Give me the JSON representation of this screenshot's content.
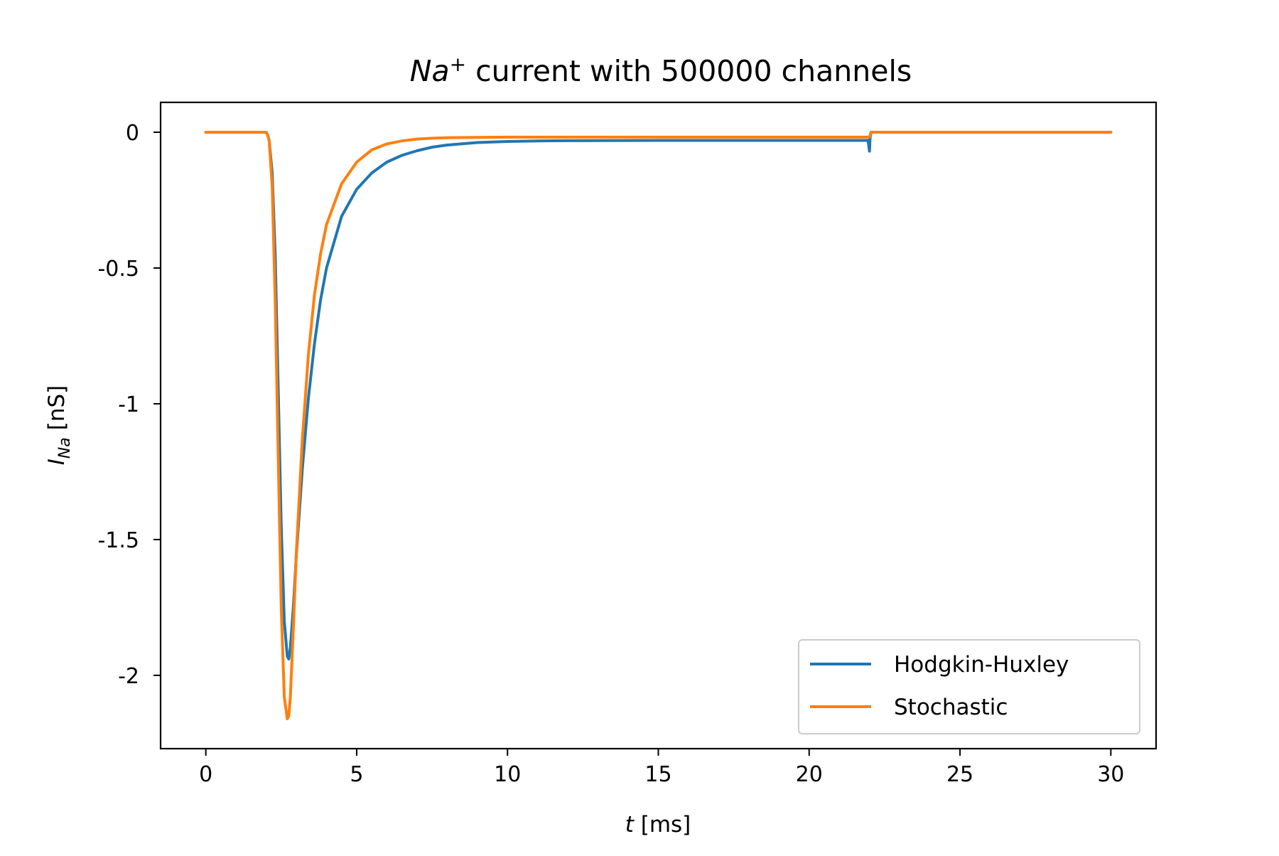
{
  "chart_data": {
    "type": "line",
    "title": {
      "prefix": "Na",
      "superscript": "+",
      "suffix": " current with 500000 channels"
    },
    "xlabel": {
      "italic": "t",
      "rest": " [ms]"
    },
    "ylabel": {
      "italic": "I",
      "subscript": "Na",
      "rest": " [nS]"
    },
    "xlim": [
      -1.5,
      31.5
    ],
    "ylim": [
      -2.27,
      0.11
    ],
    "xticks": [
      0,
      5,
      10,
      15,
      20,
      25,
      30
    ],
    "xtick_labels": [
      "0",
      "5",
      "10",
      "15",
      "20",
      "25",
      "30"
    ],
    "yticks": [
      0,
      -0.5,
      -1,
      -1.5,
      -2
    ],
    "ytick_labels": [
      "0",
      "-0.5",
      "-1",
      "-1.5",
      "-2"
    ],
    "grid": false,
    "legend_position": "lower-right",
    "series": [
      {
        "name": "Hodgkin-Huxley",
        "color": "#1f77b4",
        "x": [
          0,
          1,
          2,
          2.05,
          2.1,
          2.2,
          2.3,
          2.4,
          2.5,
          2.6,
          2.7,
          2.75,
          2.8,
          2.9,
          3.0,
          3.2,
          3.4,
          3.6,
          3.8,
          4.0,
          4.5,
          5.0,
          5.5,
          6.0,
          6.5,
          7.0,
          7.5,
          8.0,
          9.0,
          10.0,
          11.0,
          12.0,
          15.0,
          20.0,
          21.9,
          21.95,
          22.0,
          22.02,
          22.05,
          22.1,
          25.0,
          30.0
        ],
        "y": [
          0,
          0,
          0,
          -0.01,
          -0.03,
          -0.15,
          -0.45,
          -0.95,
          -1.45,
          -1.8,
          -1.93,
          -1.94,
          -1.9,
          -1.75,
          -1.56,
          -1.24,
          -0.98,
          -0.78,
          -0.62,
          -0.5,
          -0.31,
          -0.21,
          -0.15,
          -0.11,
          -0.085,
          -0.068,
          -0.055,
          -0.047,
          -0.038,
          -0.034,
          -0.032,
          -0.031,
          -0.03,
          -0.03,
          -0.03,
          -0.03,
          -0.07,
          -0.02,
          0.0,
          0.0,
          0.0,
          0.0
        ]
      },
      {
        "name": "Stochastic",
        "color": "#ff7f0e",
        "x": [
          0,
          1,
          2,
          2.05,
          2.1,
          2.2,
          2.3,
          2.4,
          2.5,
          2.6,
          2.7,
          2.75,
          2.8,
          2.9,
          3.0,
          3.2,
          3.4,
          3.6,
          3.8,
          4.0,
          4.5,
          5.0,
          5.5,
          6.0,
          6.5,
          7.0,
          7.5,
          8.0,
          9.0,
          10.0,
          15.0,
          20.0,
          21.9,
          22.0,
          22.05,
          25.0,
          30.0
        ],
        "y": [
          0,
          0,
          0,
          -0.01,
          -0.03,
          -0.2,
          -0.62,
          -1.2,
          -1.75,
          -2.08,
          -2.16,
          -2.15,
          -2.08,
          -1.83,
          -1.55,
          -1.13,
          -0.82,
          -0.6,
          -0.45,
          -0.34,
          -0.19,
          -0.11,
          -0.065,
          -0.043,
          -0.032,
          -0.025,
          -0.022,
          -0.02,
          -0.019,
          -0.018,
          -0.018,
          -0.018,
          -0.018,
          -0.018,
          0.0,
          0.0,
          0.0
        ]
      }
    ]
  }
}
